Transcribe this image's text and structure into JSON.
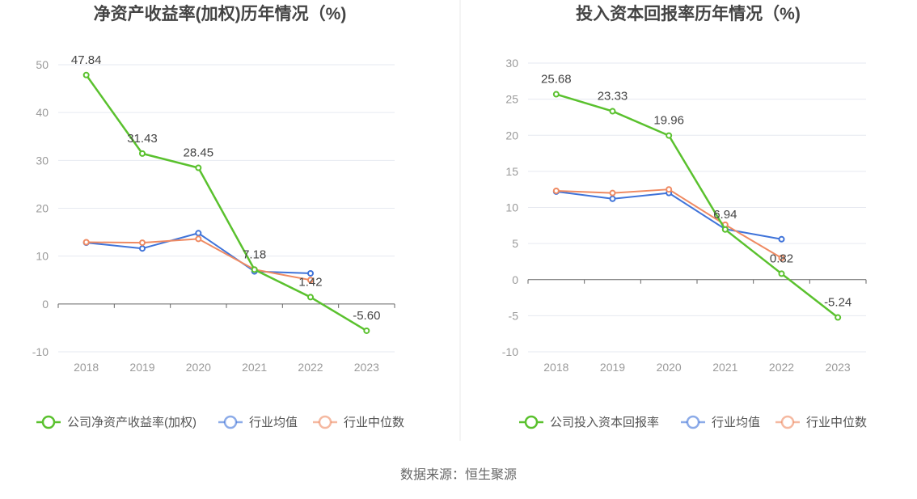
{
  "source": "数据来源：恒生聚源",
  "chart_data": [
    {
      "type": "line",
      "title": "净资产收益率(加权)历年情况（%)",
      "x": [
        "2018",
        "2019",
        "2020",
        "2021",
        "2022",
        "2023"
      ],
      "ylim": [
        -10,
        50
      ],
      "yticks": [
        50,
        40,
        30,
        20,
        10,
        0,
        -10
      ],
      "grid": true,
      "legend_position": "bottom",
      "series": [
        {
          "name": "公司净资产收益率(加权)",
          "color": "#5ac12e",
          "values": [
            47.84,
            31.43,
            28.45,
            7.18,
            1.42,
            -5.6
          ],
          "labels": [
            "47.84",
            "31.43",
            "28.45",
            "7.18",
            "1.42",
            "-5.60"
          ]
        },
        {
          "name": "行业均值",
          "color": "#3f73d9",
          "values": [
            12.8,
            11.6,
            14.8,
            6.8,
            6.4,
            null
          ]
        },
        {
          "name": "行业中位数",
          "color": "#ef8a62",
          "values": [
            12.9,
            12.8,
            13.6,
            7.2,
            5.0,
            null
          ]
        }
      ]
    },
    {
      "type": "line",
      "title": "投入资本回报率历年情况（%)",
      "x": [
        "2018",
        "2019",
        "2020",
        "2021",
        "2022",
        "2023"
      ],
      "ylim": [
        -10,
        30
      ],
      "yticks": [
        30,
        25,
        20,
        15,
        10,
        5,
        0,
        -5,
        -10
      ],
      "grid": true,
      "legend_position": "bottom",
      "series": [
        {
          "name": "公司投入资本回报率",
          "color": "#5ac12e",
          "values": [
            25.68,
            23.33,
            19.96,
            6.94,
            0.82,
            -5.24
          ],
          "labels": [
            "25.68",
            "23.33",
            "19.96",
            "6.94",
            "0.82",
            "-5.24"
          ]
        },
        {
          "name": "行业均值",
          "color": "#3f73d9",
          "values": [
            12.2,
            11.2,
            12.0,
            7.0,
            5.6,
            null
          ]
        },
        {
          "name": "行业中位数",
          "color": "#ef8a62",
          "values": [
            12.3,
            12.0,
            12.5,
            7.6,
            3.0,
            null
          ]
        }
      ]
    }
  ]
}
